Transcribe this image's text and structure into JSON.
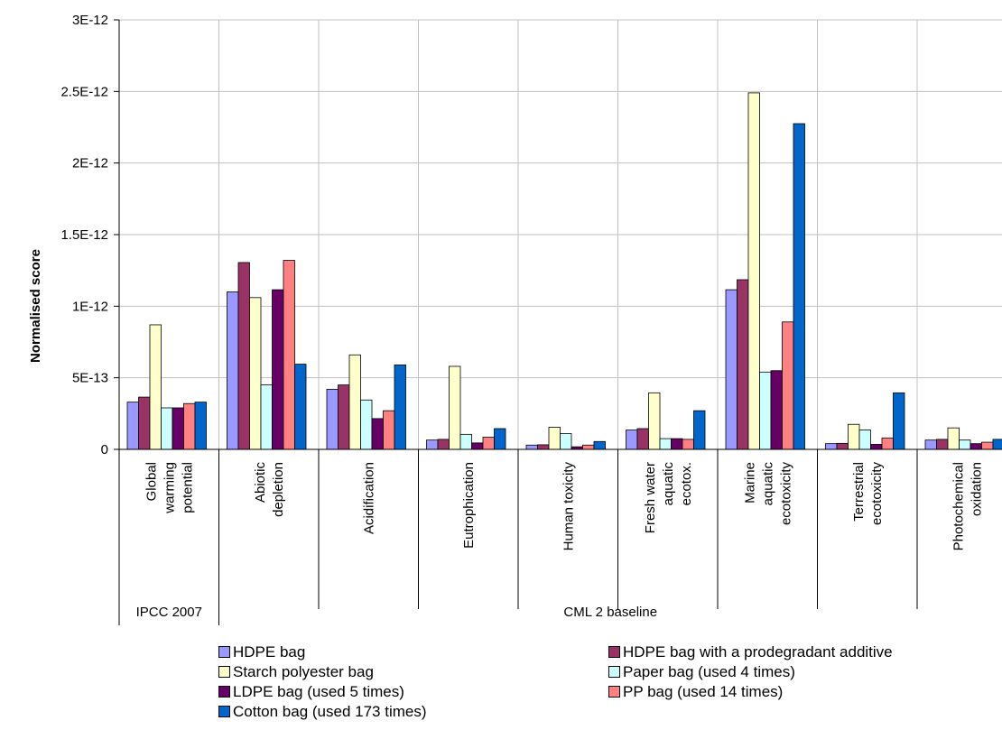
{
  "chart_data": {
    "type": "bar",
    "title": "",
    "xlabel": "",
    "ylabel": "Normalised score",
    "ylim": [
      0,
      3e-12
    ],
    "yticks": [
      "0",
      "5E-13",
      "1E-12",
      "1.5E-12",
      "2E-12",
      "2.5E-12",
      "3E-12"
    ],
    "grid": true,
    "legend_position": "bottom",
    "categories": [
      [
        "Global",
        "warming",
        "potential"
      ],
      [
        "Abiotic",
        "depletion"
      ],
      [
        "Acidification"
      ],
      [
        "Eutrophication"
      ],
      [
        "Human toxicity"
      ],
      [
        "Fresh water",
        "aquatic",
        "ecotox."
      ],
      [
        "Marine",
        "aquatic",
        "ecotoxicity"
      ],
      [
        "Terrestrial",
        "ecotoxicity"
      ],
      [
        "Photochemical",
        "oxidation"
      ]
    ],
    "groups": [
      {
        "label": "IPCC 2007",
        "span": [
          0,
          0
        ]
      },
      {
        "label": "CML 2 baseline",
        "span": [
          1,
          8
        ]
      }
    ],
    "series": [
      {
        "name": "HDPE bag",
        "color": "#9999ff",
        "values": [
          3.3e-13,
          1.1e-12,
          4.2e-13,
          6.5e-14,
          3e-14,
          1.35e-13,
          1.115e-12,
          4e-14,
          6.5e-14
        ]
      },
      {
        "name": "HDPE bag with a prodegradant additive",
        "color": "#993366",
        "values": [
          3.65e-13,
          1.305e-12,
          4.5e-13,
          7e-14,
          3.2e-14,
          1.45e-13,
          1.185e-12,
          4.2e-14,
          7e-14
        ]
      },
      {
        "name": "Starch polyester bag",
        "color": "#ffffcc",
        "values": [
          8.7e-13,
          1.06e-12,
          6.6e-13,
          5.8e-13,
          1.55e-13,
          3.95e-13,
          2.49e-12,
          1.75e-13,
          1.5e-13
        ]
      },
      {
        "name": "Paper bag (used 4 times)",
        "color": "#ccffff",
        "values": [
          2.9e-13,
          4.5e-13,
          3.45e-13,
          1.05e-13,
          1.1e-13,
          7.5e-14,
          5.4e-13,
          1.35e-13,
          6.5e-14
        ]
      },
      {
        "name": "LDPE bag (used 5 times)",
        "color": "#660066",
        "values": [
          2.9e-13,
          1.115e-12,
          2.15e-13,
          4.5e-14,
          1.8e-14,
          7.5e-14,
          5.5e-13,
          3.5e-14,
          4e-14
        ]
      },
      {
        "name": "PP bag (used 14 times)",
        "color": "#ff8080",
        "values": [
          3.2e-13,
          1.32e-12,
          2.7e-13,
          8.5e-14,
          3e-14,
          7e-14,
          8.9e-13,
          8e-14,
          5e-14
        ]
      },
      {
        "name": "Cotton bag (used 173 times)",
        "color": "#0066cc",
        "values": [
          3.3e-13,
          5.95e-13,
          5.9e-13,
          1.45e-13,
          5.5e-14,
          2.7e-13,
          2.275e-12,
          3.95e-13,
          7e-14
        ]
      }
    ]
  }
}
